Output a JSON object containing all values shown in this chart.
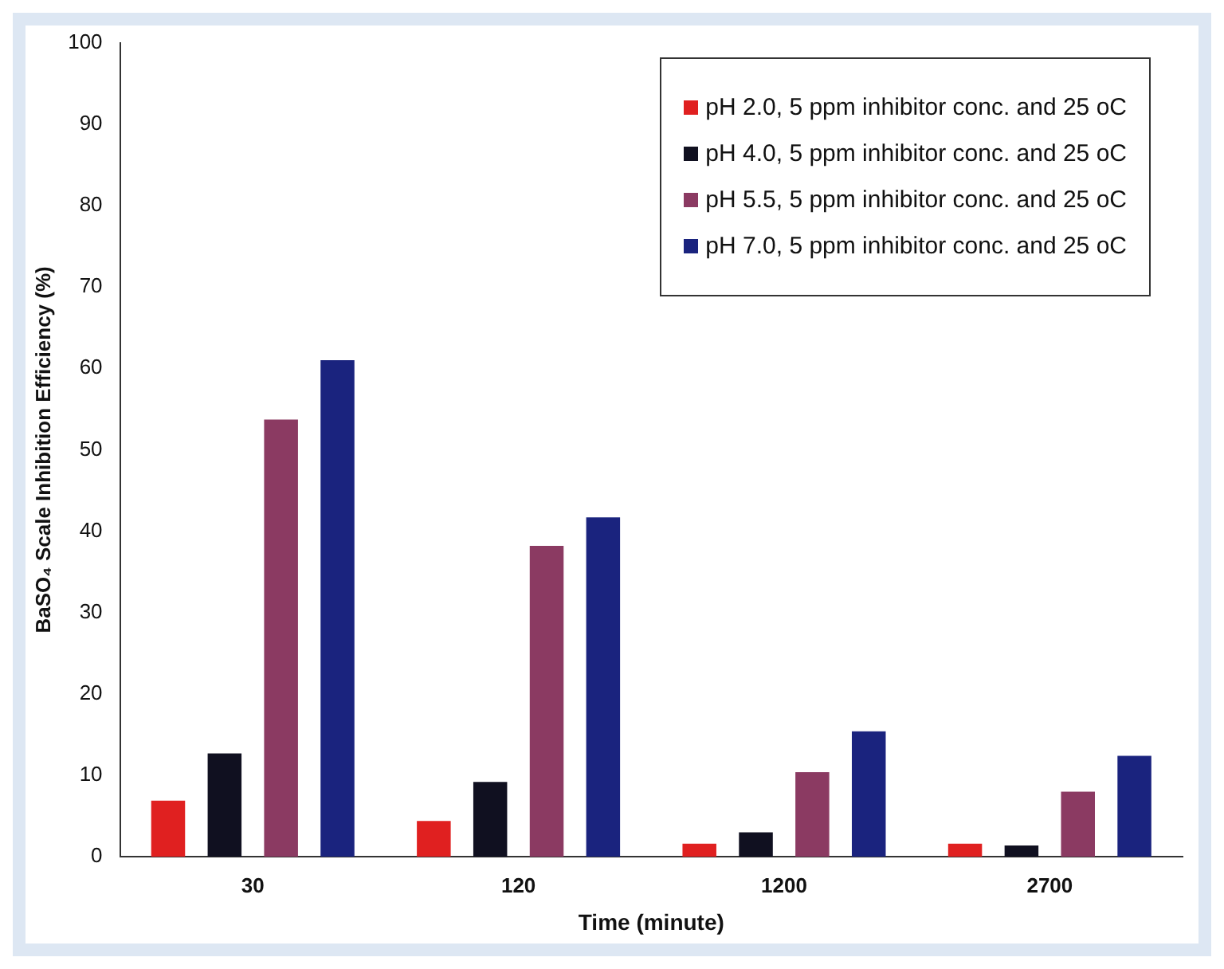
{
  "chart_data": {
    "type": "bar",
    "xlabel": "Time (minute)",
    "ylabel": "BaSO₄ Scale Inhibition Efficiency (%)",
    "categories": [
      "30",
      "120",
      "1200",
      "2700"
    ],
    "series": [
      {
        "name": "pH 2.0,  5 ppm inhibitor conc. and  25 oC",
        "color": "#e02020",
        "values": [
          6.9,
          4.4,
          1.6,
          1.6
        ]
      },
      {
        "name": "pH 4.0,  5 ppm inhibitor conc. and  25 oC",
        "color": "#101020",
        "values": [
          12.7,
          9.2,
          3,
          1.4
        ]
      },
      {
        "name": "pH 5.5,  5 ppm inhibitor conc. and  25 oC",
        "color": "#8b3a62",
        "values": [
          53.7,
          38.2,
          10.4,
          8
        ]
      },
      {
        "name": "pH 7.0,  5 ppm inhibitor conc. and  25 oC",
        "color": "#1a237e",
        "values": [
          61,
          41.7,
          15.4,
          12.4
        ]
      }
    ],
    "ylim": [
      0,
      100
    ],
    "yticks": [
      0,
      10,
      20,
      30,
      40,
      50,
      60,
      70,
      80,
      90,
      100
    ],
    "grid": false,
    "legend": "top right"
  }
}
